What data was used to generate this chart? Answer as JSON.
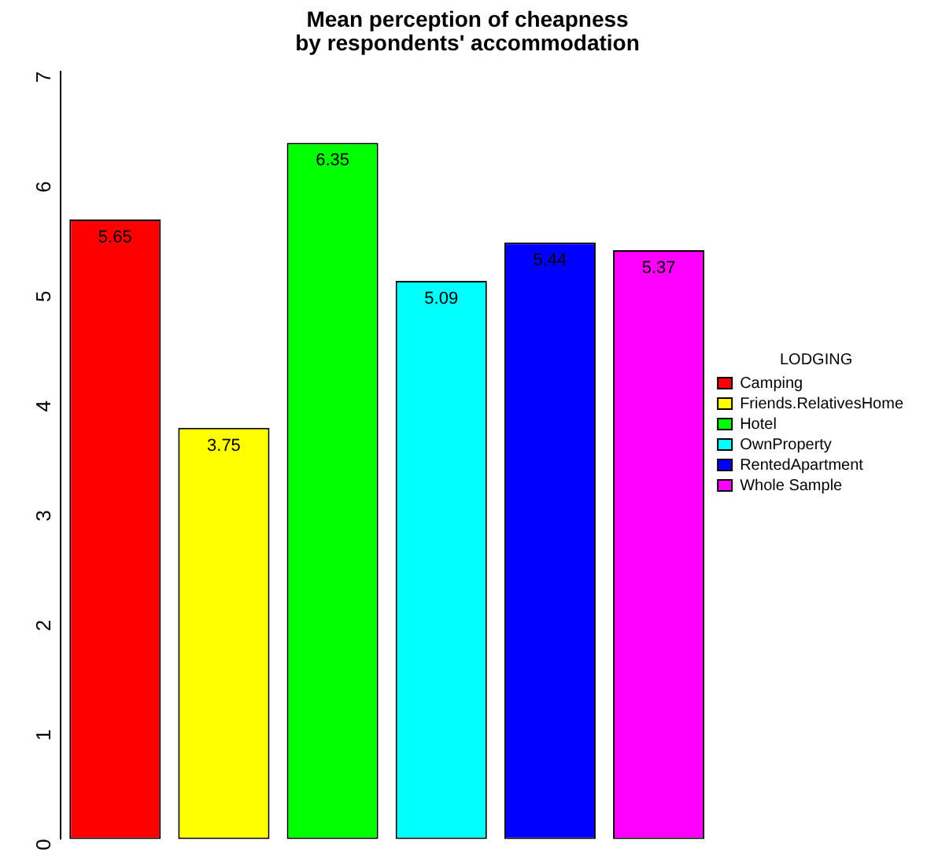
{
  "chart_data": {
    "type": "bar",
    "title": "Mean perception of cheapness\nby respondents' accommodation",
    "legend_title": "LODGING",
    "categories": [
      null
    ],
    "series": [
      {
        "name": "Camping",
        "color": "#ff0000",
        "values": [
          5.65
        ]
      },
      {
        "name": "Friends.RelativesHome",
        "color": "#ffff00",
        "values": [
          3.75
        ]
      },
      {
        "name": "Hotel",
        "color": "#00ff00",
        "values": [
          6.35
        ]
      },
      {
        "name": "OwnProperty",
        "color": "#00ffff",
        "values": [
          5.09
        ]
      },
      {
        "name": "RentedApartment",
        "color": "#0000ff",
        "values": [
          5.44
        ]
      },
      {
        "name": "Whole Sample",
        "color": "#ff00ff",
        "values": [
          5.37
        ]
      }
    ],
    "ylim": [
      0,
      7
    ],
    "yticks": [
      0,
      1,
      2,
      3,
      4,
      5,
      6,
      7
    ],
    "grid": false,
    "legend": "right",
    "data_labels": true,
    "tick_labels": "y"
  }
}
